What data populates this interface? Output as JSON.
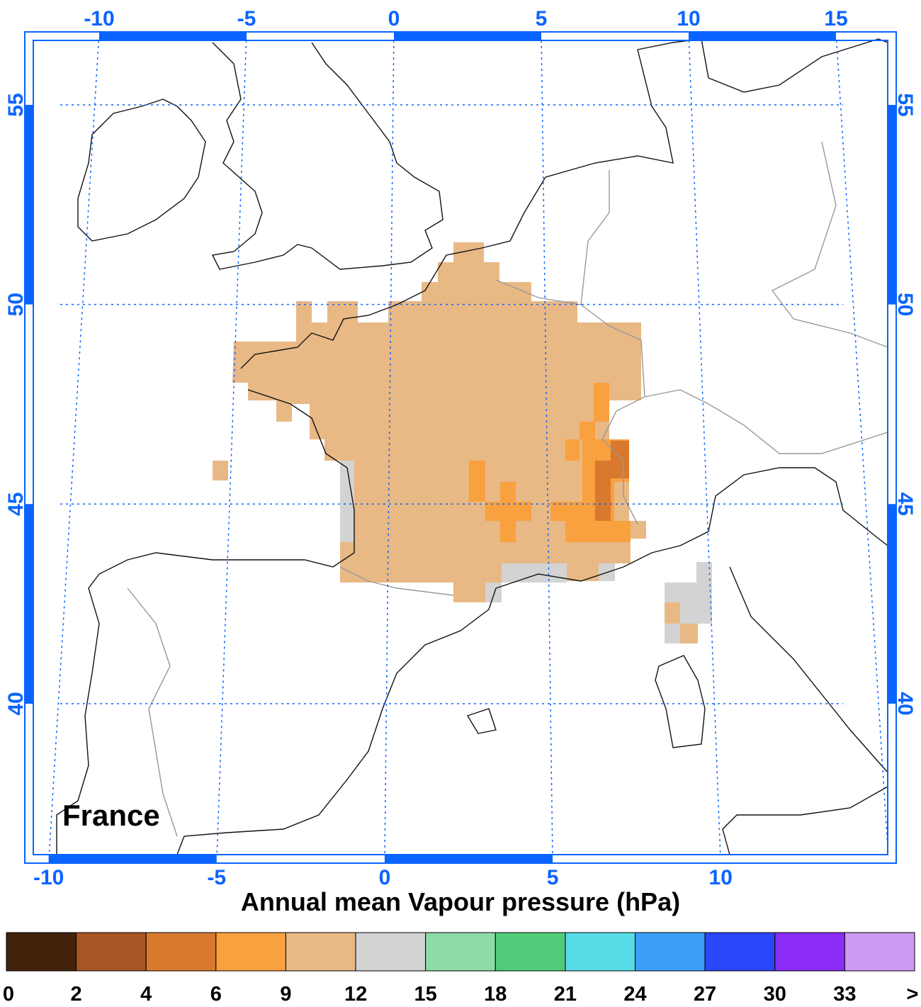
{
  "map": {
    "label": "France",
    "top_lon_ticks": [
      -10,
      -5,
      0,
      5,
      10,
      15
    ],
    "bottom_lon_ticks": [
      -10,
      -5,
      0,
      5,
      10
    ],
    "lat_ticks": [
      55,
      50,
      45,
      40
    ]
  },
  "colorbar": {
    "title": "Annual mean Vapour pressure (hPa)",
    "colors": [
      "#42210b",
      "#a65523",
      "#d9792e",
      "#f9a03f",
      "#e8b985",
      "#d3d3d3",
      "#8edba5",
      "#52cc7a",
      "#57dbe6",
      "#3d9ef7",
      "#2b47fa",
      "#8b2cf7",
      "#cc99f5"
    ],
    "labels": [
      "0",
      "2",
      "4",
      "6",
      "9",
      "12",
      "15",
      "18",
      "21",
      "24",
      "27",
      "30",
      "33",
      ">"
    ]
  }
}
